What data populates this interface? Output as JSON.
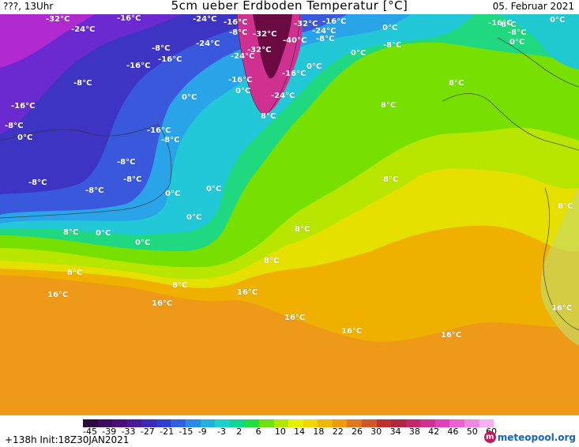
{
  "header": {
    "time": "???, 13Uhr",
    "title": "5cm ueber Erdboden Temperatur [°C]",
    "date": "05. Februar 2021"
  },
  "footer": {
    "run": "+138h  Init:18Z30JAN2021",
    "logo_main": "meteopool",
    "logo_tld": ".org"
  },
  "legend": {
    "ticks": [
      "-45",
      "-39",
      "-33",
      "-27",
      "-21",
      "-15",
      "-9",
      "-3",
      "2",
      "6",
      "10",
      "14",
      "18",
      "22",
      "26",
      "30",
      "34",
      "38",
      "42",
      "46",
      "50",
      "60"
    ],
    "colors": [
      "#2a0a3a",
      "#3d0b5c",
      "#4a0f7a",
      "#4a1a9a",
      "#3a2ab8",
      "#2e3fd0",
      "#3060e0",
      "#2a8ae8",
      "#20b0e0",
      "#20d0c8",
      "#10d890",
      "#20e040",
      "#70e010",
      "#b0e800",
      "#e8f000",
      "#f0d800",
      "#f0b800",
      "#f09a10",
      "#e07820",
      "#d05828",
      "#c03030",
      "#b02840",
      "#c02868",
      "#d03090",
      "#e040b8",
      "#f060d0",
      "#f088e0",
      "#f8b0f0"
    ]
  },
  "map_labels": [
    {
      "text": "-32°C"
    },
    {
      "text": "-24°C"
    },
    {
      "text": "-16°C"
    },
    {
      "text": "-24°C"
    },
    {
      "text": "-16°C"
    },
    {
      "text": "-24°C"
    },
    {
      "text": "-8°C"
    },
    {
      "text": "-32°C"
    },
    {
      "text": "-32°C"
    },
    {
      "text": "-24°C"
    },
    {
      "text": "-16°C"
    },
    {
      "text": "0°C"
    },
    {
      "text": "-8°C"
    },
    {
      "text": "-40°C"
    },
    {
      "text": "-8°C"
    },
    {
      "text": "-32°C"
    },
    {
      "text": "-24°C"
    },
    {
      "text": "0°C"
    },
    {
      "text": "-8°C"
    },
    {
      "text": "-16°C"
    },
    {
      "text": "-16°C"
    },
    {
      "text": "0°C"
    },
    {
      "text": "-16°C"
    },
    {
      "text": "-8°C"
    },
    {
      "text": "-16°C"
    },
    {
      "text": "0°C"
    },
    {
      "text": "-8°C"
    },
    {
      "text": "0°C"
    },
    {
      "text": "-24°C"
    },
    {
      "text": "8°C"
    },
    {
      "text": "-16°C"
    },
    {
      "text": "8°C"
    },
    {
      "text": "-8°C"
    },
    {
      "text": "0°C"
    },
    {
      "text": "0°C"
    },
    {
      "text": "8°C"
    },
    {
      "text": "-16°C"
    },
    {
      "text": "-8°C"
    },
    {
      "text": "0°C"
    },
    {
      "text": "-16°C"
    },
    {
      "text": "-8°C"
    },
    {
      "text": "-8°C"
    },
    {
      "text": "-8°C"
    },
    {
      "text": "8°C"
    },
    {
      "text": "-8°C"
    },
    {
      "text": "0°C"
    },
    {
      "text": "0°C"
    },
    {
      "text": "8°C"
    },
    {
      "text": "-8°C"
    },
    {
      "text": "0°C"
    },
    {
      "text": "8°C"
    },
    {
      "text": "0°C"
    },
    {
      "text": "0°C"
    },
    {
      "text": "8°C"
    },
    {
      "text": "8°C"
    },
    {
      "text": "8°C"
    },
    {
      "text": "16°C"
    },
    {
      "text": "8°C"
    },
    {
      "text": "16°C"
    },
    {
      "text": "16°C"
    },
    {
      "text": "16°C"
    },
    {
      "text": "16°C"
    },
    {
      "text": "16°C"
    },
    {
      "text": "16°C"
    }
  ]
}
